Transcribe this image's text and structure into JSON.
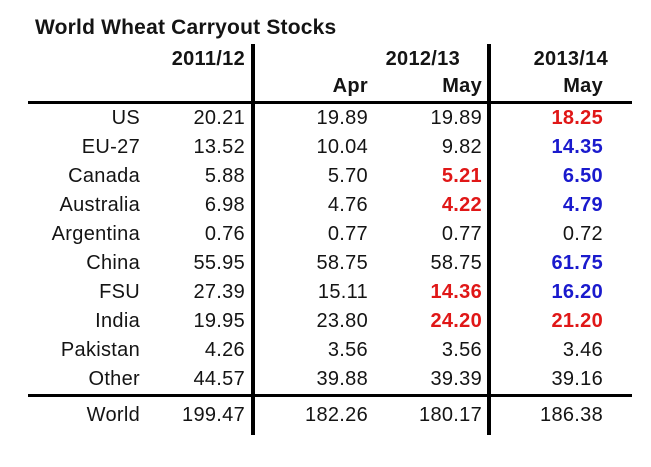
{
  "title": "World Wheat Carryout Stocks",
  "header": {
    "group_2011": "2011/12",
    "group_2012": "2012/13",
    "group_2013": "2013/14",
    "sub_2012_apr": "Apr",
    "sub_2012_may": "May",
    "sub_2013_may": "May"
  },
  "colors": {
    "decrease_red": "#e01717",
    "increase_blue": "#1a1acd",
    "text_black": "#141414"
  },
  "chart_data": {
    "type": "table",
    "title": "World Wheat Carryout Stocks",
    "columns": [
      "2011/12",
      "2012/13 Apr",
      "2012/13 May",
      "2013/14 May"
    ],
    "rows": [
      {
        "label": "US",
        "values": [
          "20.21",
          "19.89",
          "19.89",
          "18.25"
        ],
        "styles": [
          "black",
          "black",
          "black",
          "red"
        ]
      },
      {
        "label": "EU-27",
        "values": [
          "13.52",
          "10.04",
          "9.82",
          "14.35"
        ],
        "styles": [
          "black",
          "black",
          "black",
          "blue"
        ]
      },
      {
        "label": "Canada",
        "values": [
          "5.88",
          "5.70",
          "5.21",
          "6.50"
        ],
        "styles": [
          "black",
          "black",
          "red",
          "blue"
        ]
      },
      {
        "label": "Australia",
        "values": [
          "6.98",
          "4.76",
          "4.22",
          "4.79"
        ],
        "styles": [
          "black",
          "black",
          "red",
          "blue"
        ]
      },
      {
        "label": "Argentina",
        "values": [
          "0.76",
          "0.77",
          "0.77",
          "0.72"
        ],
        "styles": [
          "black",
          "black",
          "black",
          "black"
        ]
      },
      {
        "label": "China",
        "values": [
          "55.95",
          "58.75",
          "58.75",
          "61.75"
        ],
        "styles": [
          "black",
          "black",
          "black",
          "blue"
        ]
      },
      {
        "label": "FSU",
        "values": [
          "27.39",
          "15.11",
          "14.36",
          "16.20"
        ],
        "styles": [
          "black",
          "black",
          "red",
          "blue"
        ]
      },
      {
        "label": "India",
        "values": [
          "19.95",
          "23.80",
          "24.20",
          "21.20"
        ],
        "styles": [
          "black",
          "black",
          "red",
          "red"
        ]
      },
      {
        "label": "Pakistan",
        "values": [
          "4.26",
          "3.56",
          "3.56",
          "3.46"
        ],
        "styles": [
          "black",
          "black",
          "black",
          "black"
        ]
      },
      {
        "label": "Other",
        "values": [
          "44.57",
          "39.88",
          "39.39",
          "39.16"
        ],
        "styles": [
          "black",
          "black",
          "black",
          "black"
        ]
      },
      {
        "label": "World",
        "values": [
          "199.47",
          "182.26",
          "180.17",
          "186.38"
        ],
        "styles": [
          "black",
          "black",
          "black",
          "black"
        ],
        "total": true
      }
    ]
  }
}
